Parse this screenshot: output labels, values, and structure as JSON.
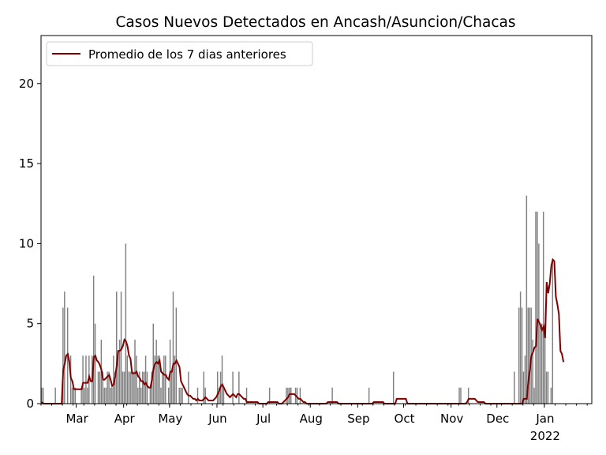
{
  "chart_data": {
    "type": "bar",
    "title": "Casos Nuevos Detectados en Ancash/Asuncion/Chacas",
    "xlabel": "",
    "ylabel": "",
    "date_start": "2021-02-06",
    "date_end": "2022-01-31",
    "ylim": [
      0,
      23
    ],
    "yticks": [
      0,
      5,
      10,
      15,
      20
    ],
    "xticks": [
      {
        "label": "Mar",
        "date": "2021-03-01"
      },
      {
        "label": "Apr",
        "date": "2021-04-01"
      },
      {
        "label": "May",
        "date": "2021-05-01"
      },
      {
        "label": "Jun",
        "date": "2021-06-01"
      },
      {
        "label": "Jul",
        "date": "2021-07-01"
      },
      {
        "label": "Aug",
        "date": "2021-08-01"
      },
      {
        "label": "Sep",
        "date": "2021-09-01"
      },
      {
        "label": "Oct",
        "date": "2021-10-01"
      },
      {
        "label": "Nov",
        "date": "2021-11-01"
      },
      {
        "label": "Dec",
        "date": "2021-12-01"
      },
      {
        "label": "Jan",
        "date": "2022-01-01"
      }
    ],
    "year_label": "2022",
    "legend": {
      "label": "Promedio de los 7 dias anteriores",
      "placement": "upper-left"
    },
    "bar_color": "#808080",
    "line_color": "#800000",
    "series": [
      {
        "name": "daily",
        "values": [
          1,
          1,
          0,
          0,
          0,
          0,
          0,
          0,
          0,
          1,
          0,
          0,
          0,
          0,
          6,
          7,
          0,
          6,
          0,
          3,
          1,
          1,
          1,
          0,
          0,
          0,
          1,
          3,
          1,
          3,
          1,
          3,
          0,
          3,
          8,
          5,
          0,
          2,
          2,
          4,
          2,
          1,
          1,
          2,
          2,
          1,
          1,
          3,
          2,
          7,
          3,
          4,
          7,
          2,
          2,
          10,
          3,
          2,
          2,
          2,
          2,
          4,
          3,
          1,
          2,
          1,
          2,
          2,
          3,
          2,
          0,
          1,
          2,
          5,
          3,
          4,
          3,
          3,
          1,
          2,
          3,
          3,
          0,
          1,
          4,
          2,
          7,
          3,
          6,
          0,
          1,
          1,
          1,
          0,
          0,
          0,
          2,
          0,
          0,
          0,
          0,
          0,
          1,
          0,
          0,
          0,
          2,
          1,
          0,
          0,
          0,
          0,
          0,
          0,
          0,
          2,
          1,
          2,
          3,
          1,
          0,
          0,
          0,
          0,
          0,
          2,
          0,
          0,
          0,
          2,
          0,
          0,
          0,
          0,
          1,
          0,
          0,
          0,
          0,
          0,
          0,
          0,
          0,
          0,
          0,
          0,
          0,
          0,
          0,
          1,
          0,
          0,
          0,
          0,
          0,
          0,
          0,
          0,
          0,
          0,
          1,
          1,
          1,
          1,
          0,
          0,
          1,
          1,
          0,
          1,
          0,
          0,
          0,
          0,
          0,
          0,
          0,
          0,
          0,
          0,
          0,
          0,
          0,
          0,
          0,
          0,
          0,
          0,
          0,
          0,
          1,
          0,
          0,
          0,
          0,
          0,
          0,
          0,
          0,
          0,
          0,
          0,
          0,
          0,
          0,
          0,
          0,
          0,
          0,
          0,
          0,
          0,
          0,
          0,
          1,
          0,
          0,
          0,
          0,
          0,
          0,
          0,
          0,
          0,
          0,
          0,
          0,
          0,
          0,
          0,
          2,
          0,
          0,
          0,
          0,
          0,
          0,
          0,
          0,
          0,
          0,
          0,
          0,
          0,
          0,
          0,
          0,
          0,
          0,
          0,
          0,
          0,
          0,
          0,
          0,
          0,
          0,
          0,
          0,
          0,
          0,
          0,
          0,
          0,
          0,
          0,
          0,
          0,
          0,
          0,
          0,
          0,
          0,
          1,
          1,
          0,
          0,
          0,
          0,
          1,
          0,
          0,
          0,
          0,
          0,
          0,
          0,
          0,
          0,
          0,
          0,
          0,
          0,
          0,
          0,
          0,
          0,
          0,
          0,
          0,
          0,
          0,
          0,
          0,
          0,
          0,
          0,
          0,
          0,
          2,
          0,
          0,
          6,
          7,
          6,
          2,
          3,
          13,
          6,
          6,
          6,
          4,
          1,
          12,
          12,
          10,
          5,
          5,
          12,
          5,
          2,
          2,
          0,
          1,
          9
        ]
      },
      {
        "name": "Promedio de los 7 dias anteriores",
        "values": [
          0.1,
          0,
          0,
          0,
          0,
          0,
          0,
          0,
          0,
          0,
          0,
          0,
          0,
          0,
          2.1,
          2.5,
          3,
          3.1,
          2.6,
          1.6,
          1.4,
          0.9,
          0.9,
          0.9,
          0.9,
          0.9,
          0.9,
          1.3,
          1.3,
          1.3,
          1.3,
          1.7,
          1.4,
          1.4,
          2.9,
          3.0,
          2.7,
          2.6,
          2.4,
          2.1,
          1.5,
          1.5,
          1.6,
          1.7,
          1.8,
          1.5,
          1.1,
          1.2,
          1.7,
          2.4,
          3.3,
          3.3,
          3.4,
          3.6,
          4.0,
          3.9,
          3.6,
          3.0,
          2.8,
          1.9,
          1.9,
          1.9,
          2.0,
          1.7,
          1.6,
          1.4,
          1.4,
          1.2,
          1.3,
          1.1,
          1.0,
          1.0,
          1.5,
          2.2,
          2.5,
          2.6,
          2.5,
          2.7,
          2.0,
          1.9,
          1.8,
          1.8,
          1.6,
          1.5,
          2.0,
          2.0,
          2.5,
          2.5,
          2.7,
          2.5,
          2.3,
          1.4,
          1.2,
          1.0,
          0.8,
          0.6,
          0.5,
          0.5,
          0.4,
          0.3,
          0.3,
          0.2,
          0.3,
          0.2,
          0.2,
          0.2,
          0.3,
          0.4,
          0.3,
          0.2,
          0.2,
          0.2,
          0.2,
          0.3,
          0.4,
          0.6,
          0.8,
          1.1,
          1.2,
          1.0,
          0.8,
          0.6,
          0.5,
          0.4,
          0.5,
          0.6,
          0.5,
          0.4,
          0.6,
          0.6,
          0.5,
          0.4,
          0.3,
          0.3,
          0.1,
          0.1,
          0.1,
          0.1,
          0.1,
          0.1,
          0.1,
          0.1,
          0,
          0,
          0,
          0,
          0,
          0,
          0.1,
          0.1,
          0.1,
          0.1,
          0.1,
          0.1,
          0.1,
          0,
          0,
          0,
          0.1,
          0.2,
          0.3,
          0.4,
          0.6,
          0.6,
          0.6,
          0.6,
          0.5,
          0.4,
          0.3,
          0.3,
          0.2,
          0.1,
          0.1,
          0,
          0,
          0,
          0,
          0,
          0,
          0,
          0,
          0,
          0,
          0,
          0,
          0,
          0,
          0.1,
          0.1,
          0.1,
          0.1,
          0.1,
          0.1,
          0.1,
          0,
          0,
          0,
          0,
          0,
          0,
          0,
          0,
          0,
          0,
          0,
          0,
          0,
          0,
          0,
          0,
          0,
          0,
          0,
          0,
          0,
          0,
          0,
          0.1,
          0.1,
          0.1,
          0.1,
          0.1,
          0.1,
          0.1,
          0,
          0,
          0,
          0,
          0,
          0,
          0,
          0,
          0.3,
          0.3,
          0.3,
          0.3,
          0.3,
          0.3,
          0.3,
          0,
          0,
          0,
          0,
          0,
          0,
          0,
          0,
          0,
          0,
          0,
          0,
          0,
          0,
          0,
          0,
          0,
          0,
          0,
          0,
          0,
          0,
          0,
          0,
          0,
          0,
          0,
          0,
          0,
          0,
          0,
          0,
          0,
          0,
          0,
          0,
          0,
          0,
          0,
          0.1,
          0.3,
          0.3,
          0.3,
          0.3,
          0.3,
          0.2,
          0.1,
          0.1,
          0.1,
          0.1,
          0.1,
          0,
          0,
          0,
          0,
          0,
          0,
          0,
          0,
          0,
          0,
          0,
          0,
          0,
          0,
          0,
          0,
          0,
          0,
          0,
          0,
          0,
          0,
          0,
          0,
          0,
          0.3,
          0.3,
          0.3,
          1.4,
          2.1,
          3.0,
          3.2,
          3.5,
          3.6,
          5.3,
          5.1,
          4.9,
          4.6,
          4.8,
          4.1,
          7.6,
          6.9,
          7.5,
          8.6,
          9.0,
          8.9,
          6.7,
          6.2,
          5.6,
          3.3,
          3.1,
          2.6
        ]
      }
    ]
  }
}
